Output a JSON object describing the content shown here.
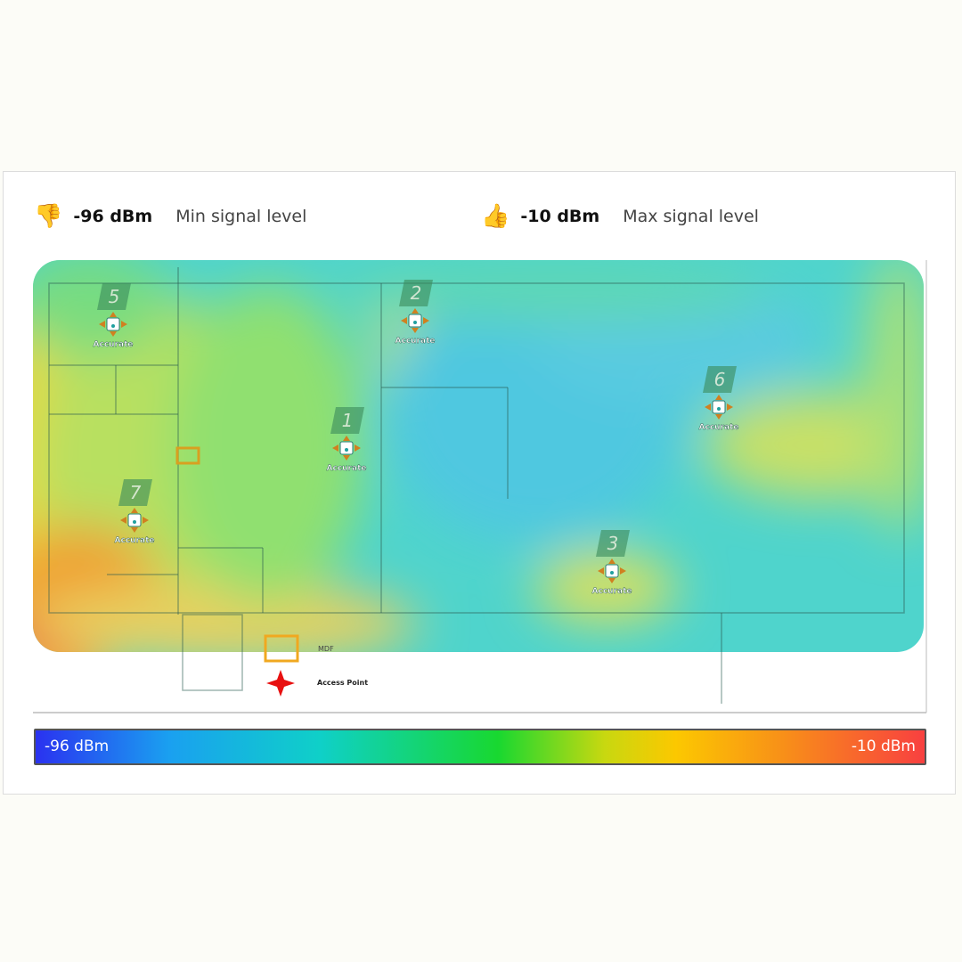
{
  "header": {
    "min_value": "-96 dBm",
    "min_label": "Min signal level",
    "max_value": "-10 dBm",
    "max_label": "Max signal level"
  },
  "access_points": [
    {
      "number": "1",
      "status": "Accurate"
    },
    {
      "number": "2",
      "status": "Accurate"
    },
    {
      "number": "3",
      "status": "Accurate"
    },
    {
      "number": "5",
      "status": "Accurate"
    },
    {
      "number": "6",
      "status": "Accurate"
    },
    {
      "number": "7",
      "status": "Accurate"
    }
  ],
  "legend": {
    "mdf": "MDF",
    "access_point": "Access Point"
  },
  "colorbar": {
    "min": "-96 dBm",
    "max": "-10 dBm"
  }
}
